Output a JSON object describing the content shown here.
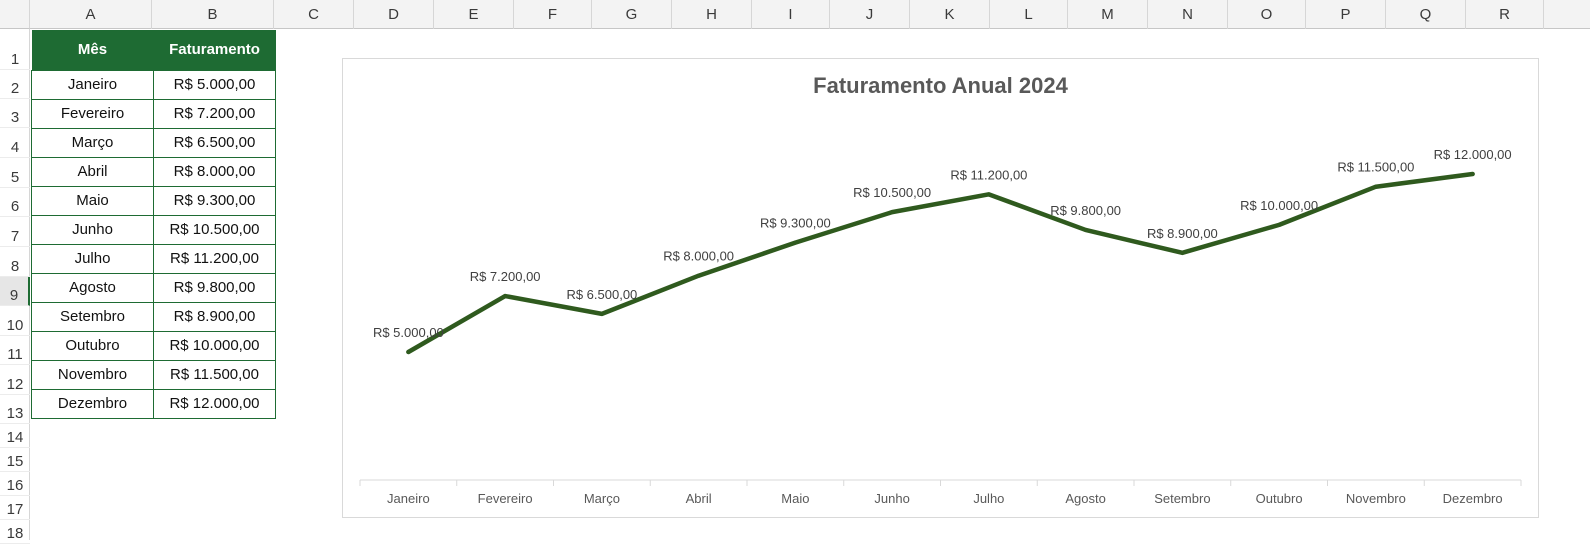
{
  "sheet": {
    "columns": [
      "A",
      "B",
      "C",
      "D",
      "E",
      "F",
      "G",
      "H",
      "I",
      "J",
      "K",
      "L",
      "M",
      "N",
      "O",
      "P",
      "Q",
      "R"
    ],
    "rows": [
      "1",
      "2",
      "3",
      "4",
      "5",
      "6",
      "7",
      "8",
      "9",
      "10",
      "11",
      "12",
      "13",
      "14",
      "15",
      "16",
      "17",
      "18"
    ],
    "active_row": "9"
  },
  "table": {
    "header_month": "Mês",
    "header_revenue": "Faturamento",
    "rows": [
      {
        "month": "Janeiro",
        "revenue": "R$ 5.000,00"
      },
      {
        "month": "Fevereiro",
        "revenue": "R$ 7.200,00"
      },
      {
        "month": "Março",
        "revenue": "R$ 6.500,00"
      },
      {
        "month": "Abril",
        "revenue": "R$ 8.000,00"
      },
      {
        "month": "Maio",
        "revenue": "R$ 9.300,00"
      },
      {
        "month": "Junho",
        "revenue": "R$ 10.500,00"
      },
      {
        "month": "Julho",
        "revenue": "R$ 11.200,00"
      },
      {
        "month": "Agosto",
        "revenue": "R$ 9.800,00"
      },
      {
        "month": "Setembro",
        "revenue": "R$ 8.900,00"
      },
      {
        "month": "Outubro",
        "revenue": "R$ 10.000,00"
      },
      {
        "month": "Novembro",
        "revenue": "R$ 11.500,00"
      },
      {
        "month": "Dezembro",
        "revenue": "R$ 12.000,00"
      }
    ]
  },
  "colors": {
    "header_green": "#1e6b33",
    "line_green": "#2f5a1e",
    "title_gray": "#595959"
  },
  "chart_data": {
    "type": "line",
    "title": "Faturamento Anual 2024",
    "categories": [
      "Janeiro",
      "Fevereiro",
      "Março",
      "Abril",
      "Maio",
      "Junho",
      "Julho",
      "Agosto",
      "Setembro",
      "Outubro",
      "Novembro",
      "Dezembro"
    ],
    "values": [
      5000,
      7200,
      6500,
      8000,
      9300,
      10500,
      11200,
      9800,
      8900,
      10000,
      11500,
      12000
    ],
    "data_labels": [
      "R$ 5.000,00",
      "R$ 7.200,00",
      "R$ 6.500,00",
      "R$ 8.000,00",
      "R$ 9.300,00",
      "R$ 10.500,00",
      "R$ 11.200,00",
      "R$ 9.800,00",
      "R$ 8.900,00",
      "R$ 10.000,00",
      "R$ 11.500,00",
      "R$ 12.000,00"
    ],
    "grid": false,
    "legend": "none"
  }
}
